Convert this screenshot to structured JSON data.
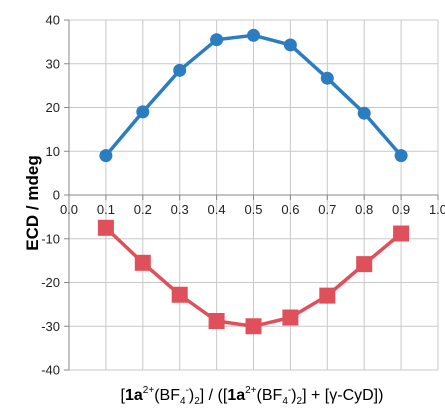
{
  "chart_data": {
    "type": "line",
    "x": [
      0.1,
      0.2,
      0.3,
      0.4,
      0.5,
      0.6,
      0.7,
      0.8,
      0.9
    ],
    "series": [
      {
        "values": [
          9,
          19,
          28.5,
          35.5,
          36.5,
          34.3,
          26.7,
          18.7,
          9
        ],
        "color": "#2b7cc0",
        "marker": "circle"
      },
      {
        "values": [
          -7.5,
          -15.5,
          -22.8,
          -28.8,
          -30,
          -28,
          -23,
          -15.8,
          -8.8
        ],
        "color": "#e0505a",
        "marker": "square"
      }
    ],
    "xlim": [
      0.0,
      1.0
    ],
    "ylim": [
      -40,
      40
    ],
    "xticks": [
      "0.0",
      "0.1",
      "0.2",
      "0.3",
      "0.4",
      "0.5",
      "0.6",
      "0.7",
      "0.8",
      "0.9",
      "1.0"
    ],
    "yticks": [
      "40",
      "30",
      "20",
      "10",
      "0",
      "-10",
      "-20",
      "-30",
      "-40"
    ],
    "ylabel": "ECD / mdeg",
    "xlabel": {
      "open": "[",
      "bold1": "1a",
      "sup1": "2+",
      "mid1": "(BF",
      "sub1": "4",
      "sup2": "-",
      "mid2": ")",
      "sub2": "2",
      "mid3": "] / ([",
      "bold2": "1a",
      "sup3": "2+",
      "mid4": "(BF",
      "sub3": "4",
      "sup4": "-",
      "mid5": ")",
      "sub4": "2",
      "mid6": "] + [γ-CyD])"
    },
    "grid": true
  }
}
